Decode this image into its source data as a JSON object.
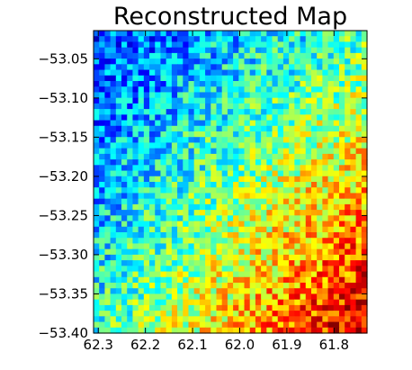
{
  "chart_data": {
    "type": "heatmap",
    "title": "Reconstructed Map",
    "xlabel": "",
    "ylabel": "",
    "colormap": "jet",
    "x_axis_reversed": true,
    "xlim": [
      62.31,
      61.73
    ],
    "ylim": [
      -53.4,
      -53.014
    ],
    "x_ticks": [
      62.3,
      62.2,
      62.1,
      62.0,
      61.9,
      61.8
    ],
    "x_tick_labels": [
      "62.3",
      "62.2",
      "62.1",
      "62.0",
      "61.9",
      "61.8"
    ],
    "y_ticks": [
      -53.05,
      -53.1,
      -53.15,
      -53.2,
      -53.25,
      -53.3,
      -53.35,
      -53.4
    ],
    "y_tick_labels": [
      "−53.05",
      "−53.10",
      "−53.15",
      "−53.20",
      "−53.25",
      "−53.30",
      "−53.35",
      "−53.40"
    ],
    "grid": false,
    "legend": "none",
    "grid_resolution": [
      49,
      54
    ],
    "intensity_model": {
      "description_of_field": "normalized intensity 0-1; low (blue) in top-left, high (red) in bottom-right",
      "top_left": 0.18,
      "top_right": 0.45,
      "bottom_left": 0.42,
      "bottom_right": 0.92,
      "noise_amplitude": 0.16
    }
  }
}
